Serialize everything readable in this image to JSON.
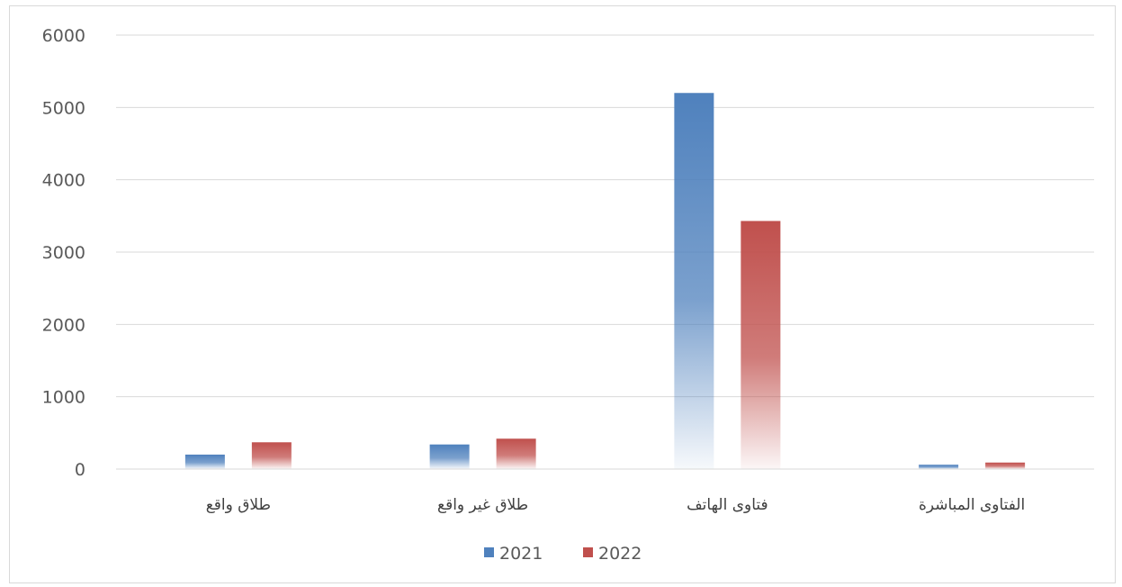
{
  "chart_data": {
    "type": "bar",
    "title": "",
    "xlabel": "",
    "ylabel": "",
    "categories": [
      "طلاق واقع",
      "طلاق غير واقع",
      "فتاوى الهاتف",
      "الفتاوى المباشرة"
    ],
    "series": [
      {
        "name": "2021",
        "values": [
          200,
          340,
          5200,
          60
        ],
        "color": "#4f81bd"
      },
      {
        "name": "2022",
        "values": [
          370,
          420,
          3430,
          90
        ],
        "color": "#c0504d"
      }
    ],
    "ylim": [
      0,
      6000
    ],
    "yticks": [
      "0",
      "1000",
      "2000",
      "3000",
      "4000",
      "5000",
      "6000"
    ],
    "grid": true,
    "legend": "bottom"
  }
}
